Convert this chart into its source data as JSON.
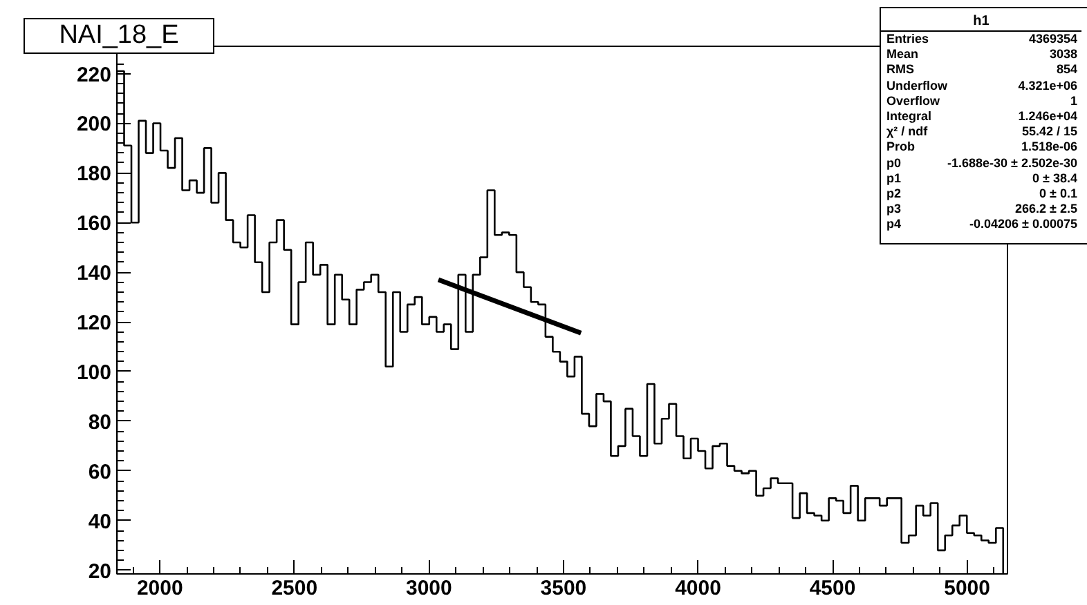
{
  "chart_data": {
    "type": "histogram",
    "title": "NAI_18_E",
    "bins": [
      1840,
      1867,
      1894,
      1921,
      1948,
      1975,
      2002,
      2029,
      2056,
      2083,
      2110,
      2137,
      2164,
      2191,
      2218,
      2245,
      2272,
      2299,
      2326,
      2353,
      2380,
      2407,
      2434,
      2461,
      2488,
      2515,
      2542,
      2569,
      2596,
      2623,
      2650,
      2677,
      2704,
      2731,
      2758,
      2785,
      2812,
      2839,
      2866,
      2893,
      2920,
      2947,
      2974,
      3001,
      3028,
      3055,
      3082,
      3109,
      3136,
      3163,
      3190,
      3217,
      3244,
      3271,
      3298,
      3325,
      3352,
      3379,
      3406,
      3433,
      3460,
      3487,
      3514,
      3541,
      3568,
      3595,
      3622,
      3649,
      3676,
      3703,
      3730,
      3757,
      3784,
      3811,
      3838,
      3865,
      3892,
      3919,
      3946,
      3973,
      4000,
      4027,
      4054,
      4081,
      4108,
      4135,
      4162,
      4189,
      4216,
      4243,
      4270,
      4297,
      4324,
      4351,
      4378,
      4405,
      4432,
      4459,
      4486,
      4513,
      4540,
      4567,
      4594,
      4621,
      4648,
      4675,
      4702,
      4729,
      4756,
      4783,
      4810,
      4837,
      4864,
      4891,
      4918,
      4945,
      4972,
      4999,
      5026,
      5053,
      5080,
      5107,
      5134
    ],
    "values": [
      221,
      191,
      160,
      201,
      188,
      200,
      189,
      182,
      194,
      173,
      177,
      172,
      190,
      168,
      180,
      161,
      152,
      150,
      163,
      144,
      132,
      152,
      161,
      149,
      119,
      136,
      152,
      139,
      143,
      119,
      139,
      129,
      119,
      133,
      136,
      139,
      132,
      102,
      132,
      116,
      127,
      130,
      119,
      122,
      116,
      119,
      109,
      139,
      116,
      139,
      146,
      173,
      155,
      156,
      155,
      140,
      134,
      128,
      127,
      114,
      108,
      104,
      98,
      106,
      83,
      78,
      91,
      88,
      66,
      70,
      85,
      74,
      66,
      95,
      71,
      81,
      87,
      74,
      65,
      73,
      68,
      61,
      70,
      71,
      62,
      60,
      59,
      60,
      50,
      53,
      57,
      55,
      55,
      41,
      51,
      43,
      42,
      40,
      49,
      48,
      43,
      54,
      40,
      49,
      49,
      46,
      49,
      49,
      31,
      34,
      46,
      42,
      47,
      28,
      34,
      38,
      42,
      35,
      34,
      32,
      31,
      37
    ],
    "color": "#000000",
    "series": [
      {
        "type": "line",
        "x": [
          3035,
          3565
        ],
        "values": [
          137,
          115.5
        ],
        "color": "#000000"
      }
    ],
    "xlim": [
      1840,
      5150
    ],
    "xticks": [
      2000,
      2500,
      3000,
      3500,
      4000,
      4500,
      5000
    ],
    "ylim": [
      18.5,
      231
    ],
    "yticks": [
      20,
      40,
      60,
      80,
      100,
      120,
      140,
      160,
      180,
      200,
      220
    ],
    "grid": false,
    "annotations": [
      "h1",
      "Entries",
      "4369354",
      "Mean",
      "3038",
      "RMS",
      "854",
      "Underflow",
      "4.321e+06",
      "Overflow",
      "1",
      "Integral",
      "1.246e+04",
      "χ² / ndf",
      "55.42 / 15",
      "Prob",
      "1.518e-06",
      "p0",
      "-1.688e-30 ± 2.502e-30",
      "p1",
      "0 ± 38.4",
      "p2",
      "0 ± 0.1",
      "p3",
      "266.2 ± 2.5",
      "p4",
      "-0.04206 ± 0.00075"
    ]
  }
}
